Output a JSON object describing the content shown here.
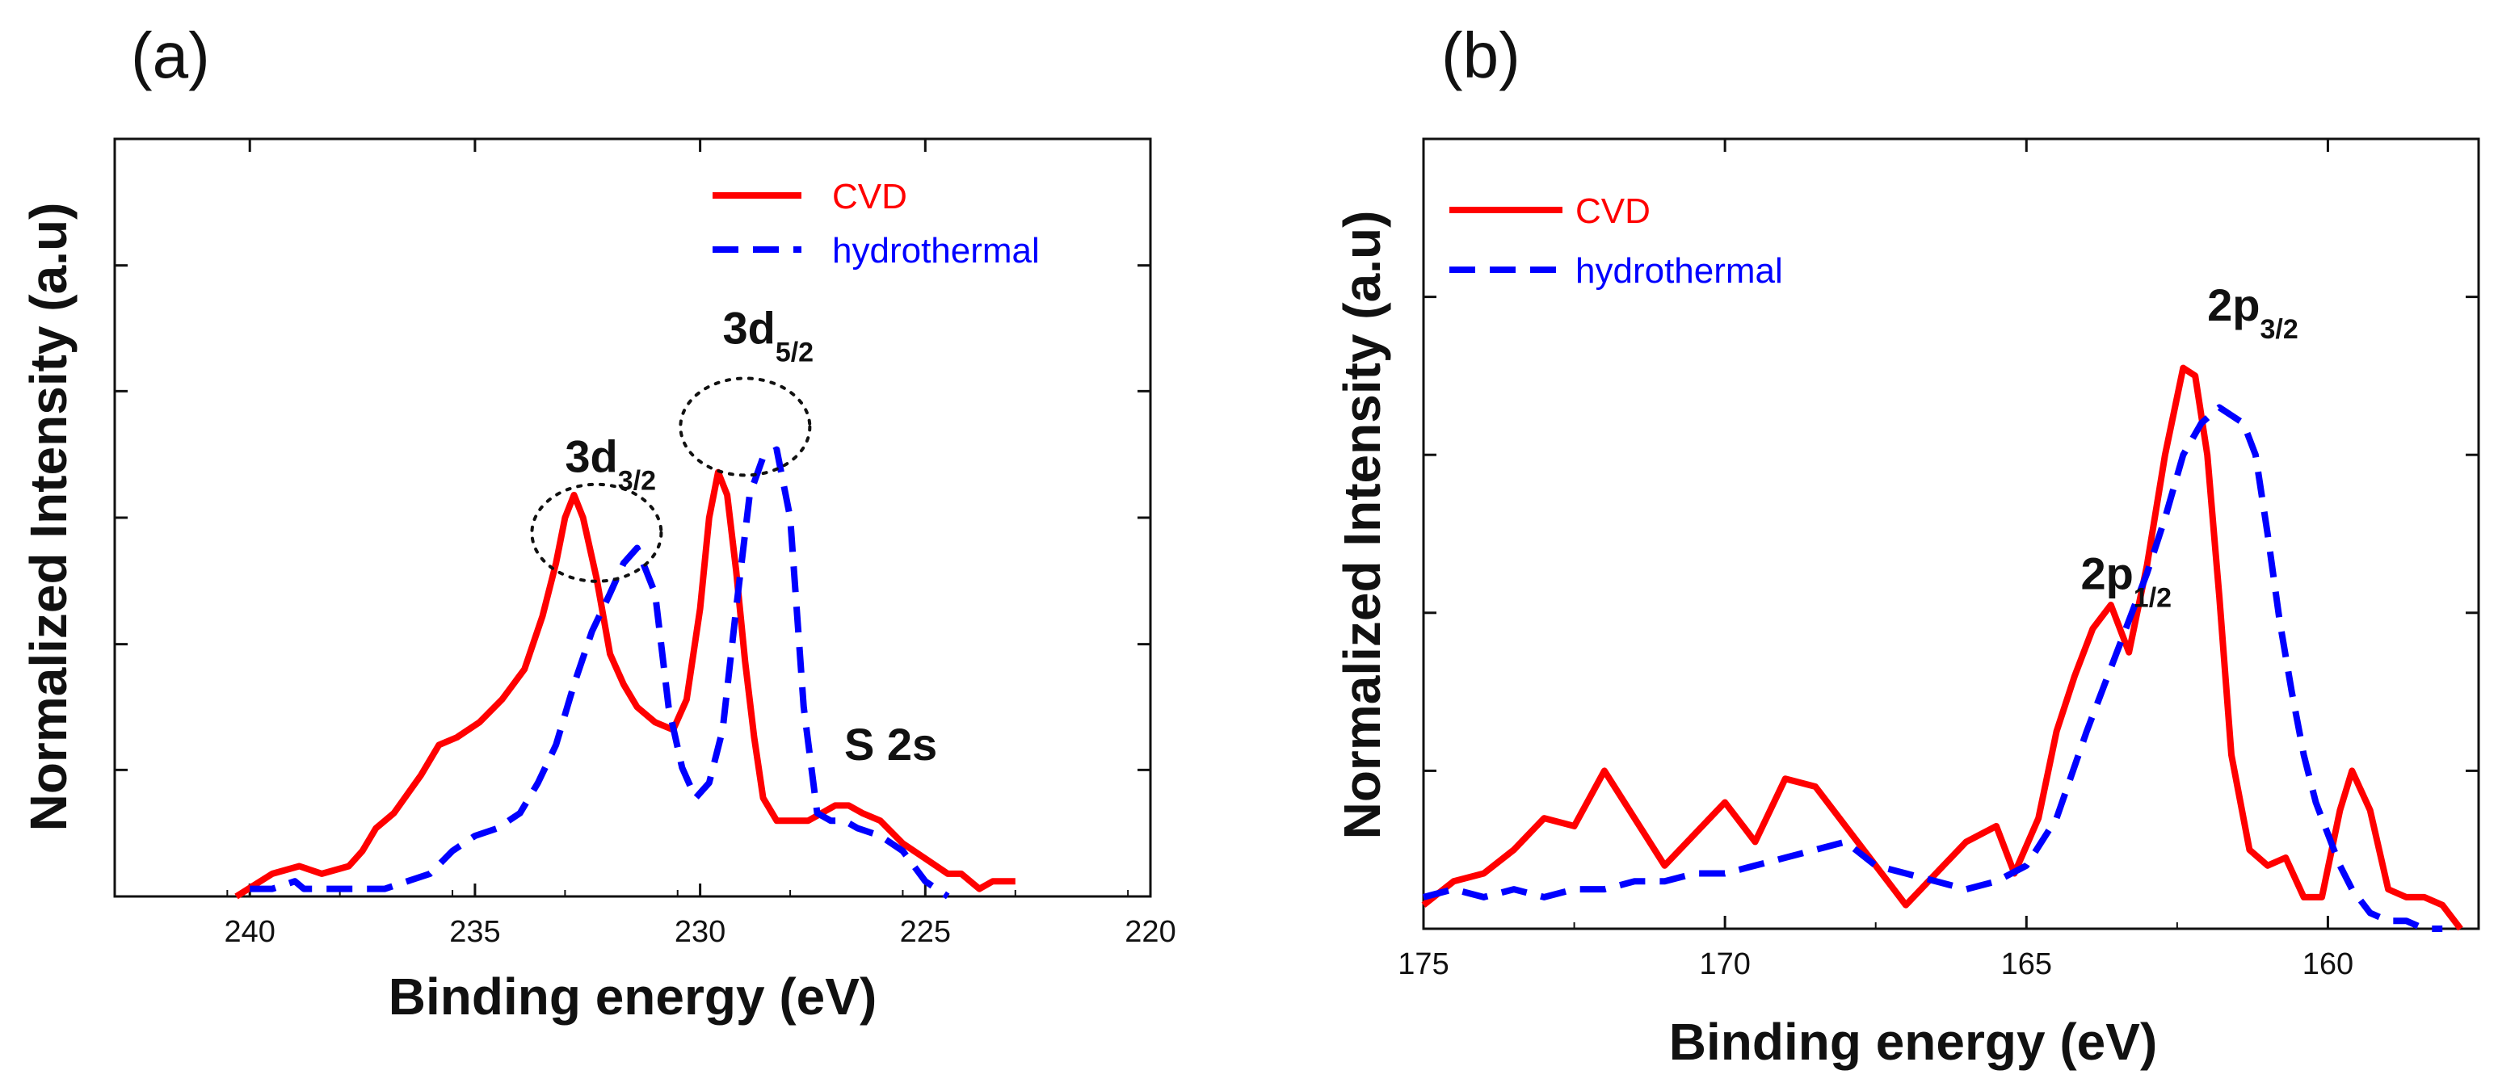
{
  "colors": {
    "cvd": "#ff0000",
    "hydrothermal": "#0000ff",
    "axis": "#111111"
  },
  "chart_data": [
    {
      "type": "line",
      "panel_label": "(a)",
      "title": "",
      "xlabel": "Binding energy (eV)",
      "ylabel": "Normalized Intensity (a.u)",
      "xlim": [
        243,
        220
      ],
      "ylim": [
        0,
        1
      ],
      "xticks": [
        240,
        235,
        230,
        225,
        220
      ],
      "xtick_labels": [
        "240",
        "235",
        "230",
        "225",
        "220"
      ],
      "yticks": [
        0.167,
        0.333,
        0.5,
        0.667,
        0.833,
        1.0
      ],
      "grid": false,
      "legend": {
        "placement": "top-right",
        "entries": [
          "CVD",
          "hydrothermal"
        ]
      },
      "series": [
        {
          "name": "CVD",
          "style": "solid",
          "x": [
            240.3,
            239.5,
            238.9,
            238.4,
            237.8,
            237.5,
            237.2,
            236.8,
            236.2,
            235.8,
            235.4,
            234.9,
            234.4,
            233.9,
            233.5,
            233.2,
            233.0,
            232.8,
            232.6,
            232.3,
            232.0,
            231.7,
            231.4,
            231.0,
            230.6,
            230.3,
            230.0,
            229.8,
            229.6,
            229.4,
            229.2,
            229.0,
            228.8,
            228.6,
            228.3,
            228.0,
            227.6,
            227.3,
            227.0,
            226.7,
            226.4,
            226.0,
            225.5,
            225.0,
            224.5,
            224.2,
            223.8,
            223.5,
            223.2,
            223.0
          ],
          "y": [
            0.0,
            0.03,
            0.04,
            0.03,
            0.04,
            0.06,
            0.09,
            0.11,
            0.16,
            0.2,
            0.21,
            0.23,
            0.26,
            0.3,
            0.37,
            0.44,
            0.5,
            0.53,
            0.5,
            0.42,
            0.32,
            0.28,
            0.25,
            0.23,
            0.22,
            0.26,
            0.38,
            0.5,
            0.56,
            0.53,
            0.43,
            0.31,
            0.21,
            0.13,
            0.1,
            0.1,
            0.1,
            0.11,
            0.12,
            0.12,
            0.11,
            0.1,
            0.07,
            0.05,
            0.03,
            0.03,
            0.01,
            0.02,
            0.02,
            0.02
          ]
        },
        {
          "name": "hydrothermal",
          "style": "dashed",
          "x": [
            240.0,
            239.5,
            239.0,
            238.8,
            238.5,
            238.0,
            237.5,
            237.0,
            236.5,
            236.0,
            235.5,
            235.0,
            234.5,
            234.0,
            233.6,
            233.2,
            232.8,
            232.4,
            232.0,
            231.7,
            231.4,
            231.0,
            230.7,
            230.4,
            230.1,
            229.8,
            229.5,
            229.2,
            228.9,
            228.6,
            228.3,
            228.0,
            227.7,
            227.4,
            227.1,
            226.8,
            226.5,
            226.0,
            225.5,
            225.0,
            224.5
          ],
          "y": [
            0.01,
            0.01,
            0.02,
            0.01,
            0.01,
            0.01,
            0.01,
            0.01,
            0.02,
            0.03,
            0.06,
            0.08,
            0.09,
            0.11,
            0.15,
            0.2,
            0.28,
            0.35,
            0.4,
            0.44,
            0.46,
            0.4,
            0.25,
            0.17,
            0.13,
            0.15,
            0.22,
            0.38,
            0.53,
            0.58,
            0.59,
            0.5,
            0.25,
            0.11,
            0.1,
            0.1,
            0.09,
            0.08,
            0.06,
            0.02,
            0.0
          ]
        }
      ],
      "annotations": [
        {
          "main": "3d",
          "sub": "3/2",
          "x": 233.0,
          "y": 0.56
        },
        {
          "main": "3d",
          "sub": "5/2",
          "x": 229.5,
          "y": 0.73
        },
        {
          "main": "S 2s",
          "sub": "",
          "x": 226.8,
          "y": 0.18
        }
      ]
    },
    {
      "type": "line",
      "panel_label": "(b)",
      "title": "",
      "xlabel": "Binding energy (eV)",
      "ylabel": "Normalized Intensity (a.u)",
      "xlim": [
        175,
        157.5
      ],
      "ylim": [
        0,
        1
      ],
      "xticks": [
        175,
        170,
        165,
        160
      ],
      "xtick_labels": [
        "175",
        "170",
        "165",
        "160"
      ],
      "yticks": [
        0.2,
        0.4,
        0.6,
        0.8,
        1.0
      ],
      "grid": false,
      "legend": {
        "placement": "top-left",
        "entries": [
          "CVD",
          "hydrothermal"
        ]
      },
      "series": [
        {
          "name": "CVD",
          "style": "solid",
          "x": [
            175.0,
            174.5,
            174.0,
            173.5,
            173.0,
            172.5,
            172.0,
            171.5,
            171.0,
            170.5,
            170.0,
            169.5,
            169.0,
            168.5,
            168.0,
            167.5,
            167.2,
            167.0,
            166.5,
            166.0,
            165.5,
            165.2,
            164.8,
            164.5,
            164.2,
            163.9,
            163.6,
            163.3,
            163.0,
            162.7,
            162.4,
            162.2,
            162.0,
            161.8,
            161.6,
            161.3,
            161.0,
            160.7,
            160.4,
            160.1,
            159.8,
            159.6,
            159.3,
            159.0,
            158.7,
            158.4,
            158.1,
            157.8
          ],
          "y": [
            0.03,
            0.06,
            0.07,
            0.1,
            0.14,
            0.13,
            0.2,
            0.14,
            0.08,
            0.12,
            0.16,
            0.11,
            0.19,
            0.18,
            0.13,
            0.08,
            0.05,
            0.03,
            0.07,
            0.11,
            0.13,
            0.07,
            0.14,
            0.25,
            0.32,
            0.38,
            0.41,
            0.35,
            0.46,
            0.6,
            0.71,
            0.7,
            0.6,
            0.42,
            0.22,
            0.1,
            0.08,
            0.09,
            0.04,
            0.04,
            0.15,
            0.2,
            0.15,
            0.05,
            0.04,
            0.04,
            0.03,
            0.0
          ]
        },
        {
          "name": "hydrothermal",
          "style": "dashed",
          "x": [
            175.0,
            174.5,
            174.0,
            173.5,
            173.0,
            172.5,
            172.0,
            171.5,
            171.0,
            170.5,
            170.0,
            169.5,
            169.0,
            168.5,
            168.0,
            167.5,
            167.0,
            166.5,
            166.0,
            165.5,
            165.0,
            164.5,
            164.0,
            163.5,
            163.0,
            162.7,
            162.4,
            162.1,
            161.8,
            161.6,
            161.4,
            161.2,
            161.0,
            160.8,
            160.6,
            160.4,
            160.2,
            160.0,
            159.8,
            159.6,
            159.3,
            159.0,
            158.7,
            158.4,
            158.1
          ],
          "y": [
            0.04,
            0.05,
            0.04,
            0.05,
            0.04,
            0.05,
            0.05,
            0.06,
            0.06,
            0.07,
            0.07,
            0.08,
            0.09,
            0.1,
            0.11,
            0.08,
            0.07,
            0.06,
            0.05,
            0.06,
            0.08,
            0.14,
            0.25,
            0.35,
            0.45,
            0.52,
            0.6,
            0.64,
            0.66,
            0.65,
            0.64,
            0.6,
            0.5,
            0.39,
            0.3,
            0.22,
            0.16,
            0.12,
            0.08,
            0.05,
            0.02,
            0.01,
            0.01,
            0.0,
            0.0
          ]
        }
      ],
      "annotations": [
        {
          "main": "2p",
          "sub": "1/2",
          "x": 164.1,
          "y": 0.43
        },
        {
          "main": "2p",
          "sub": "3/2",
          "x": 162.0,
          "y": 0.77
        }
      ]
    }
  ]
}
